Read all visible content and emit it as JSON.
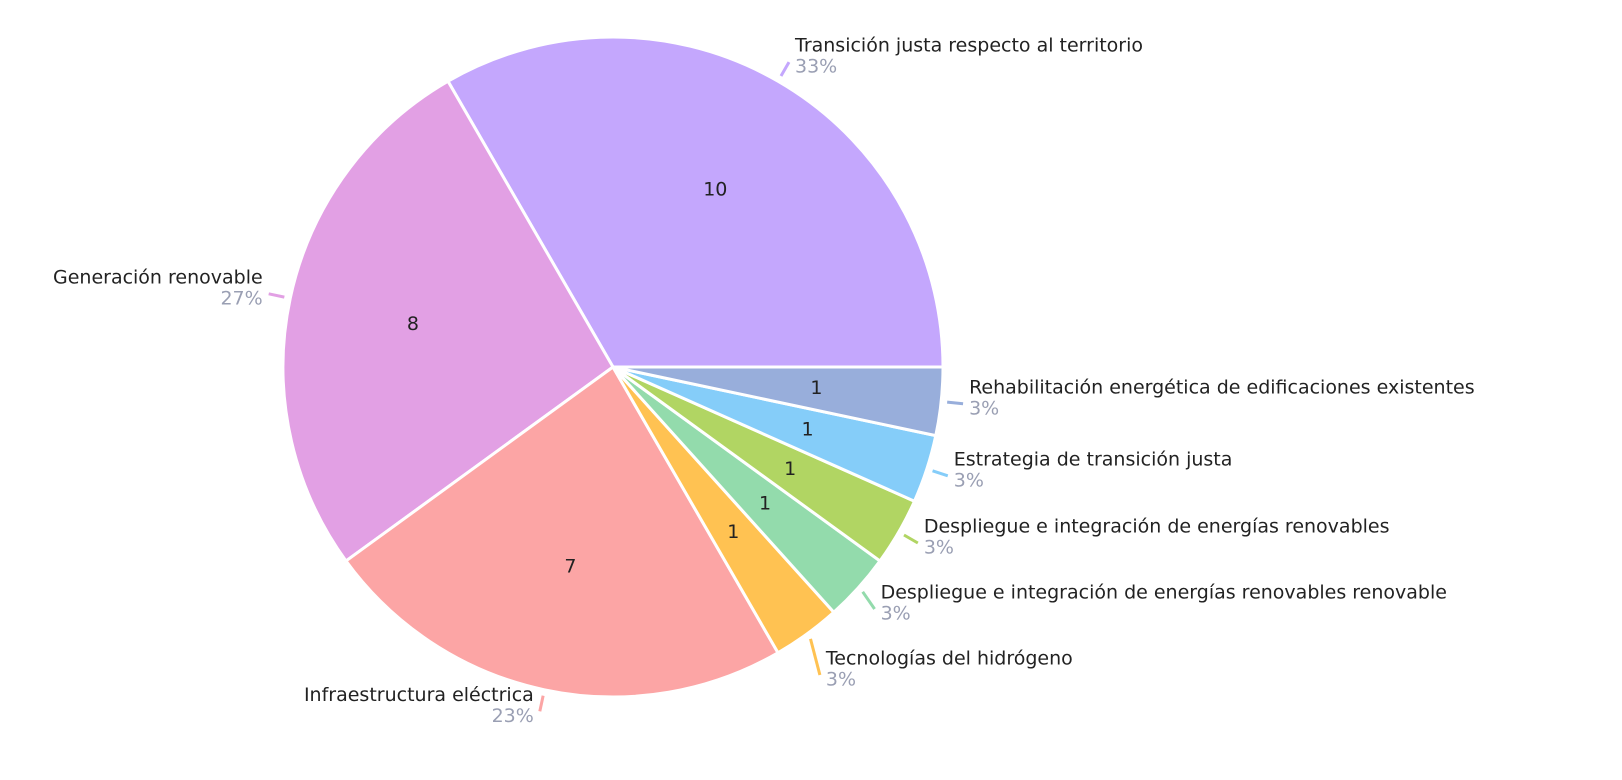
{
  "chart_data": {
    "type": "pie",
    "categories": [
      "Transición justa respecto al territorio",
      "Generación renovable",
      "Infraestructura eléctrica",
      "Tecnologías del hidrógeno",
      "Despliegue e integración de energías renovables renovable",
      "Despliegue e integración de energías renovables",
      "Estrategia de transición justa",
      "Rehabilitación energética de edificaciones existentes"
    ],
    "values": [
      10,
      8,
      7,
      1,
      1,
      1,
      1,
      1
    ],
    "percent_labels": [
      "33%",
      "27%",
      "23%",
      "3%",
      "3%",
      "3%",
      "3%",
      "3%"
    ],
    "colors": [
      "#c4a7fd",
      "#e2a0e4",
      "#fca5a5",
      "#ffc252",
      "#93dbac",
      "#b1d563",
      "#85cdf9",
      "#98aedb"
    ]
  }
}
